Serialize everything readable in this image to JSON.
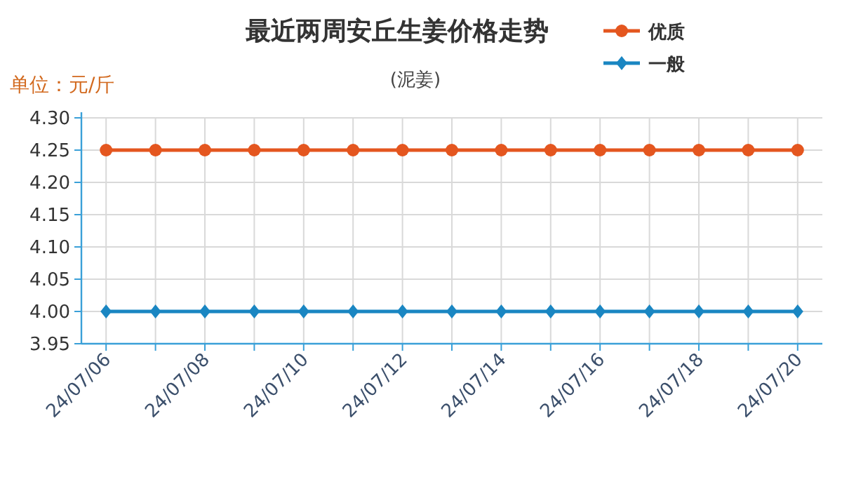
{
  "chart_data": {
    "type": "line",
    "title": "最近两周安丘生姜价格走势",
    "subtitle": "(泥姜)",
    "ylabel": "单位：元/斤",
    "categories": [
      "24/07/06",
      null,
      "24/07/08",
      null,
      "24/07/10",
      null,
      "24/07/12",
      null,
      "24/07/14",
      null,
      "24/07/16",
      null,
      "24/07/18",
      null,
      "24/07/20"
    ],
    "series": [
      {
        "name": "优质",
        "color": "#e4561f",
        "marker": "circle",
        "values": [
          4.25,
          4.25,
          4.25,
          4.25,
          4.25,
          4.25,
          4.25,
          4.25,
          4.25,
          4.25,
          4.25,
          4.25,
          4.25,
          4.25,
          4.25
        ]
      },
      {
        "name": "一般",
        "color": "#1a86c2",
        "marker": "diamond",
        "values": [
          4.0,
          4.0,
          4.0,
          4.0,
          4.0,
          4.0,
          4.0,
          4.0,
          4.0,
          4.0,
          4.0,
          4.0,
          4.0,
          4.0,
          4.0
        ]
      }
    ],
    "ylim": [
      3.95,
      4.3
    ],
    "yticks": [
      3.95,
      {
        "value": 4.0,
        "label": "4.00"
      },
      4.05,
      {
        "value": 4.1,
        "label": "4.10"
      },
      4.15,
      {
        "value": 4.2,
        "label": "4.20"
      },
      4.25,
      {
        "value": 4.3,
        "label": "4.30"
      }
    ],
    "grid": true,
    "legend": "top right",
    "line_style": "solid"
  }
}
